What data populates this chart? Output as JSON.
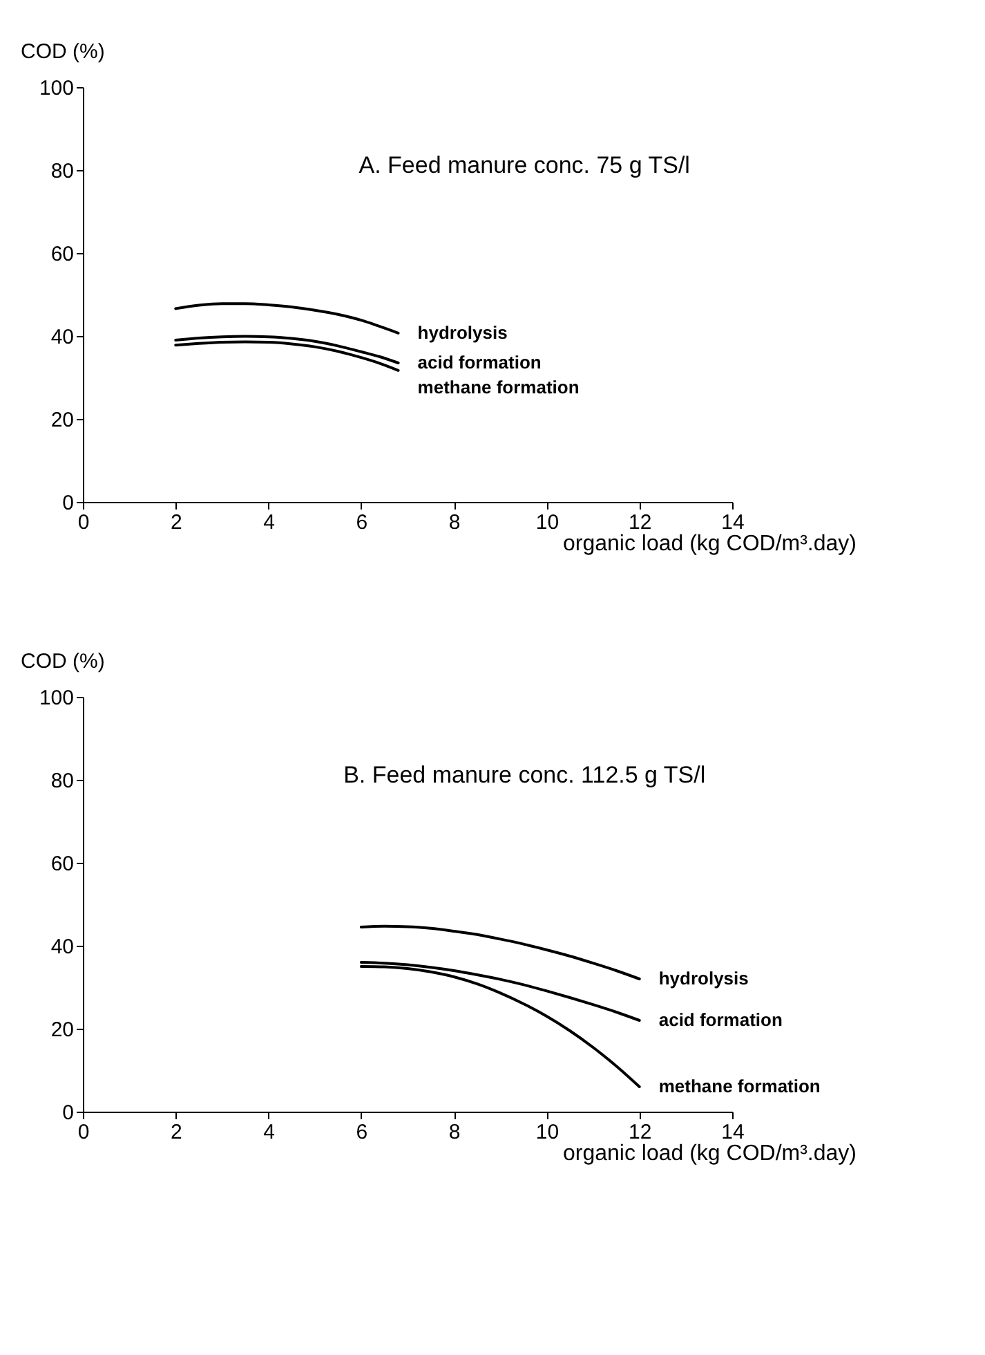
{
  "chart_data": [
    {
      "type": "line",
      "title": "A.  Feed manure conc. 75 g TS/l",
      "xlabel": "organic load (kg COD/m³.day)",
      "ylabel": "COD (%)",
      "xlim": [
        0,
        14
      ],
      "xticks": [
        0,
        2,
        4,
        6,
        8,
        10,
        12,
        14
      ],
      "ylim": [
        0,
        100
      ],
      "yticks": [
        0,
        20,
        40,
        60,
        80,
        100
      ],
      "grid": false,
      "legend": false,
      "marker": "none",
      "line_style": "solid",
      "series": [
        {
          "name": "hydrolysis",
          "color": "#000000",
          "x": [
            2,
            2.5,
            3,
            3.5,
            4,
            4.5,
            5,
            5.5,
            6,
            6.4,
            6.8
          ],
          "values": [
            46.6,
            47.4,
            47.8,
            47.8,
            47.5,
            47,
            46.2,
            45.2,
            43.8,
            42.3,
            40.7
          ]
        },
        {
          "name": "acid formation",
          "color": "#000000",
          "x": [
            2,
            2.5,
            3,
            3.5,
            4,
            4.5,
            5,
            5.5,
            6,
            6.4,
            6.8
          ],
          "values": [
            39,
            39.5,
            39.8,
            39.9,
            39.8,
            39.4,
            38.7,
            37.6,
            36.2,
            35,
            33.5
          ]
        },
        {
          "name": "methane formation",
          "color": "#000000",
          "x": [
            2,
            2.5,
            3,
            3.5,
            4,
            4.5,
            5,
            5.5,
            6,
            6.4,
            6.8
          ],
          "values": [
            37.8,
            38.2,
            38.5,
            38.6,
            38.5,
            38.1,
            37.4,
            36.3,
            34.8,
            33.4,
            31.7
          ]
        }
      ]
    },
    {
      "type": "line",
      "title": "B.  Feed manure conc. 112.5 g TS/l",
      "xlabel": "organic load (kg COD/m³.day)",
      "ylabel": "COD (%)",
      "xlim": [
        0,
        14
      ],
      "xticks": [
        0,
        2,
        4,
        6,
        8,
        10,
        12,
        14
      ],
      "ylim": [
        0,
        100
      ],
      "yticks": [
        0,
        20,
        40,
        60,
        80,
        100
      ],
      "grid": false,
      "legend": false,
      "marker": "none",
      "line_style": "solid",
      "series": [
        {
          "name": "hydrolysis",
          "color": "#000000",
          "x": [
            6,
            6.5,
            7,
            7.5,
            8,
            8.5,
            9,
            9.5,
            10,
            10.5,
            11,
            11.5,
            12
          ],
          "values": [
            44.5,
            44.7,
            44.6,
            44.2,
            43.5,
            42.7,
            41.6,
            40.4,
            39,
            37.5,
            35.8,
            34,
            32
          ]
        },
        {
          "name": "acid formation",
          "color": "#000000",
          "x": [
            6,
            6.5,
            7,
            7.5,
            8,
            8.5,
            9,
            9.5,
            10,
            10.5,
            11,
            11.5,
            12
          ],
          "values": [
            36,
            35.8,
            35.4,
            34.8,
            34,
            33,
            31.9,
            30.6,
            29.1,
            27.5,
            25.8,
            24,
            22
          ]
        },
        {
          "name": "methane formation",
          "color": "#000000",
          "x": [
            6,
            6.5,
            7,
            7.5,
            8,
            8.5,
            9,
            9.5,
            10,
            10.5,
            11,
            11.5,
            12
          ],
          "values": [
            35,
            34.9,
            34.5,
            33.7,
            32.5,
            30.8,
            28.6,
            26,
            23,
            19.5,
            15.5,
            11,
            6
          ]
        }
      ]
    }
  ]
}
